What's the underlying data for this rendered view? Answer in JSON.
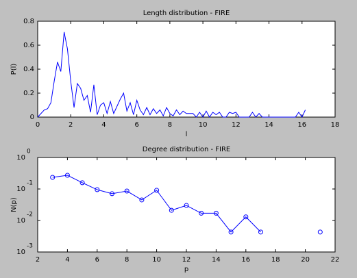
{
  "chart_data": [
    {
      "type": "line",
      "title": "Length distribution - FIRE",
      "xlabel": "l",
      "ylabel": "P(l)",
      "x": [
        0,
        0.2,
        0.4,
        0.6,
        0.8,
        1.0,
        1.2,
        1.4,
        1.6,
        1.8,
        2.0,
        2.2,
        2.4,
        2.6,
        2.8,
        3.0,
        3.2,
        3.4,
        3.6,
        3.8,
        4.0,
        4.2,
        4.4,
        4.6,
        4.8,
        5.0,
        5.2,
        5.4,
        5.6,
        5.8,
        6.0,
        6.2,
        6.4,
        6.6,
        6.8,
        7.0,
        7.2,
        7.4,
        7.6,
        7.8,
        8.0,
        8.2,
        8.4,
        8.6,
        8.8,
        9.0,
        9.2,
        9.4,
        9.6,
        9.8,
        10.0,
        10.2,
        10.4,
        10.6,
        10.8,
        11.0,
        11.2,
        11.4,
        11.6,
        11.8,
        12.0,
        12.2,
        12.4,
        12.6,
        12.8,
        13.0,
        13.2,
        13.4,
        13.6,
        13.8,
        14.0,
        14.2,
        14.4,
        14.6,
        14.8,
        15.0,
        15.2,
        15.4,
        15.6,
        15.8,
        16.0,
        16.2
      ],
      "series": [
        {
          "name": "P(l)",
          "color": "#0000ff",
          "values": [
            0,
            0.03,
            0.06,
            0.07,
            0.12,
            0.3,
            0.46,
            0.38,
            0.71,
            0.57,
            0.3,
            0.08,
            0.28,
            0.24,
            0.14,
            0.18,
            0.04,
            0.27,
            0.02,
            0.1,
            0.12,
            0.03,
            0.13,
            0.03,
            0.09,
            0.15,
            0.2,
            0.05,
            0.12,
            0.02,
            0.14,
            0.06,
            0.02,
            0.08,
            0.02,
            0.07,
            0.03,
            0.06,
            0.01,
            0.08,
            0.03,
            0.01,
            0.06,
            0.02,
            0.05,
            0.03,
            0.03,
            0.03,
            0,
            0.04,
            0,
            0.05,
            0,
            0.04,
            0.02,
            0.04,
            0,
            0,
            0.04,
            0.03,
            0.04,
            0,
            0,
            0,
            0,
            0.04,
            0,
            0.03,
            0,
            0,
            0,
            0,
            0,
            0,
            0,
            0,
            0,
            0,
            0,
            0.04,
            0,
            0.06
          ]
        }
      ],
      "xlim": [
        0,
        18
      ],
      "xticks": [
        0,
        2,
        4,
        6,
        8,
        10,
        12,
        14,
        16,
        18
      ],
      "ylim": [
        0,
        0.8
      ],
      "yticks": [
        0,
        0.2,
        0.4,
        0.6,
        0.8
      ]
    },
    {
      "type": "line",
      "title": "Degree distribution - FIRE",
      "xlabel": "p",
      "ylabel": "N(p)",
      "log_y": true,
      "markers": "circle",
      "x": [
        3,
        4,
        5,
        6,
        7,
        8,
        9,
        10,
        11,
        12,
        13,
        14,
        15,
        16,
        17,
        18,
        19,
        20,
        21
      ],
      "series": [
        {
          "name": "N(p)",
          "color": "#0000ff",
          "values": [
            0.234,
            0.272,
            0.158,
            0.095,
            0.071,
            0.086,
            0.045,
            0.091,
            0.021,
            0.03,
            0.017,
            0.017,
            0.0043,
            0.013,
            0.0043,
            null,
            null,
            null,
            0.0043
          ]
        }
      ],
      "xlim": [
        2,
        22
      ],
      "xticks": [
        2,
        4,
        6,
        8,
        10,
        12,
        14,
        16,
        18,
        20,
        22
      ],
      "ylim": [
        0.001,
        1
      ],
      "yticks": [
        {
          "value": 1,
          "label": "10",
          "exponent": "0"
        },
        {
          "value": 0.1,
          "label": "10",
          "exponent": "-1"
        },
        {
          "value": 0.01,
          "label": "10",
          "exponent": "-2"
        },
        {
          "value": 0.001,
          "label": "10",
          "exponent": "-3"
        }
      ]
    }
  ]
}
